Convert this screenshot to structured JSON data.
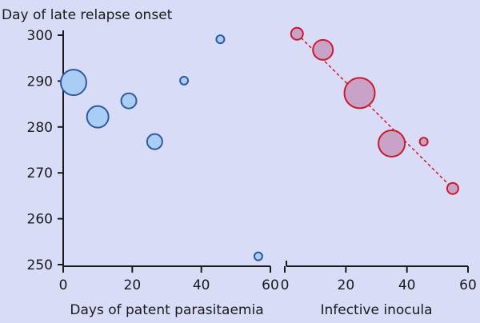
{
  "chart_data": {
    "type": "scatter",
    "ylabel": "Day of late relapse onset",
    "ylim": [
      250,
      300
    ],
    "yticks": [
      250,
      260,
      270,
      280,
      290,
      300
    ],
    "grid": false,
    "panels": [
      {
        "xlabel": "Days of patent parasitaemia",
        "xlim": [
          0,
          60
        ],
        "xticks": [
          0,
          20,
          40,
          60
        ],
        "fill_color": "#a9cdf5",
        "stroke_color": "#2f5a9e",
        "trend_line": false,
        "points": [
          {
            "x": 3,
            "y": 289.7,
            "size": 16
          },
          {
            "x": 10,
            "y": 282.2,
            "size": 13.5
          },
          {
            "x": 19,
            "y": 285.7,
            "size": 9.5
          },
          {
            "x": 26.5,
            "y": 276.8,
            "size": 9.5
          },
          {
            "x": 35,
            "y": 290.1,
            "size": 5
          },
          {
            "x": 45.5,
            "y": 299.1,
            "size": 5
          },
          {
            "x": 56.5,
            "y": 251.8,
            "size": 5
          }
        ]
      },
      {
        "xlabel": "Infective inocula",
        "xlim": [
          0,
          60
        ],
        "xticks": [
          0,
          20,
          40,
          60
        ],
        "fill_color": "#c8a3c7",
        "stroke_color": "#cc1a2e",
        "trend_line": true,
        "points": [
          {
            "x": 4,
            "y": 300.3,
            "size": 7.5
          },
          {
            "x": 12.5,
            "y": 296.8,
            "size": 12.5
          },
          {
            "x": 24.5,
            "y": 287.4,
            "size": 19
          },
          {
            "x": 35,
            "y": 276.4,
            "size": 16.5
          },
          {
            "x": 45.5,
            "y": 276.8,
            "size": 5
          },
          {
            "x": 55,
            "y": 266.6,
            "size": 7
          }
        ]
      }
    ]
  }
}
